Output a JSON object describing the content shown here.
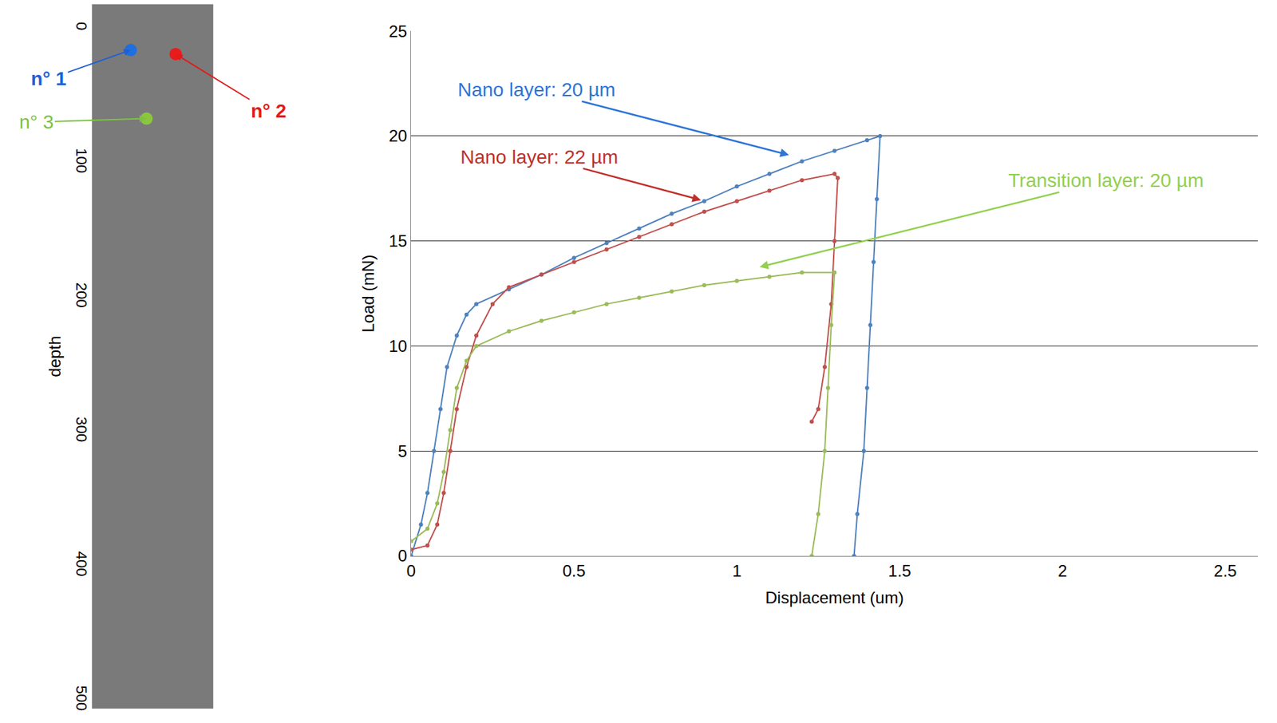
{
  "chart_data": [
    {
      "type": "line",
      "marker": "circle",
      "xlabel": "Displacement (um)",
      "ylabel": "Load (mN)",
      "xlim": [
        0,
        2.6
      ],
      "xticks": [
        0,
        0.5,
        1,
        1.5,
        2,
        2.5
      ],
      "ylim": [
        0,
        25
      ],
      "yticks": [
        0,
        5,
        10,
        15,
        20,
        25
      ],
      "grid": true,
      "series": [
        {
          "color": "#4f81bd",
          "x": [
            0,
            0.03,
            0.05,
            0.07,
            0.09,
            0.11,
            0.14,
            0.17,
            0.2,
            0.3,
            0.4,
            0.5,
            0.6,
            0.7,
            0.8,
            0.9,
            1.0,
            1.1,
            1.2,
            1.3,
            1.4,
            1.44,
            1.43,
            1.42,
            1.41,
            1.4,
            1.39,
            1.37,
            1.36
          ],
          "values": [
            0,
            1.5,
            3,
            5,
            7,
            9,
            10.5,
            11.5,
            12,
            12.7,
            13.4,
            14.2,
            14.9,
            15.6,
            16.3,
            16.9,
            17.6,
            18.2,
            18.8,
            19.3,
            19.8,
            20,
            17,
            14,
            11,
            8,
            5,
            2,
            0
          ]
        },
        {
          "color": "#c0504d",
          "x": [
            0,
            0.05,
            0.08,
            0.1,
            0.12,
            0.14,
            0.17,
            0.2,
            0.25,
            0.3,
            0.4,
            0.5,
            0.6,
            0.7,
            0.8,
            0.9,
            1.0,
            1.1,
            1.2,
            1.3,
            1.31,
            1.3,
            1.29,
            1.27,
            1.25,
            1.23
          ],
          "values": [
            0.3,
            0.5,
            1.5,
            3,
            5,
            7,
            9,
            10.5,
            12,
            12.8,
            13.4,
            14,
            14.6,
            15.2,
            15.8,
            16.4,
            16.9,
            17.4,
            17.9,
            18.2,
            18,
            15,
            12,
            9,
            7,
            6.4
          ]
        },
        {
          "color": "#9bbb59",
          "x": [
            0,
            0.05,
            0.08,
            0.1,
            0.12,
            0.14,
            0.17,
            0.2,
            0.3,
            0.4,
            0.5,
            0.6,
            0.7,
            0.8,
            0.9,
            1.0,
            1.1,
            1.2,
            1.3,
            1.29,
            1.28,
            1.27,
            1.25,
            1.23
          ],
          "values": [
            0.7,
            1.3,
            2.5,
            4,
            6,
            8,
            9.3,
            10,
            10.7,
            11.2,
            11.6,
            12,
            12.3,
            12.6,
            12.9,
            13.1,
            13.3,
            13.5,
            13.5,
            11,
            8,
            5,
            2,
            0
          ]
        }
      ],
      "annotations": [
        {
          "text": "Nano layer: 20 µm",
          "x": 1.16,
          "y": 19.1,
          "color": "#2e75d6"
        },
        {
          "text": "Nano layer: 22 µm",
          "x": 0.89,
          "y": 16.95,
          "color": "#c0302b"
        },
        {
          "text": "Transition layer: 20 µm",
          "x": 1.07,
          "y": 13.76,
          "color": "#92d050"
        }
      ]
    },
    {
      "type": "scatter",
      "ylabel": "depth",
      "xlim": [
        0,
        1
      ],
      "ylim": [
        506,
        -18
      ],
      "yticks": [
        0,
        100,
        200,
        300,
        400,
        500
      ],
      "tick_labels": "y",
      "x": [
        0.32,
        0.69,
        0.45
      ],
      "values": [
        16,
        19,
        67
      ],
      "colors": [
        "#1f6fe0",
        "#e81c1c",
        "#8cc63f"
      ],
      "annotations": [
        {
          "text": "n° 1",
          "color": "#1f5fd6"
        },
        {
          "text": "n° 2",
          "color": "#e01b1b"
        },
        {
          "text": "n° 3",
          "color": "#7cc242"
        }
      ]
    }
  ]
}
